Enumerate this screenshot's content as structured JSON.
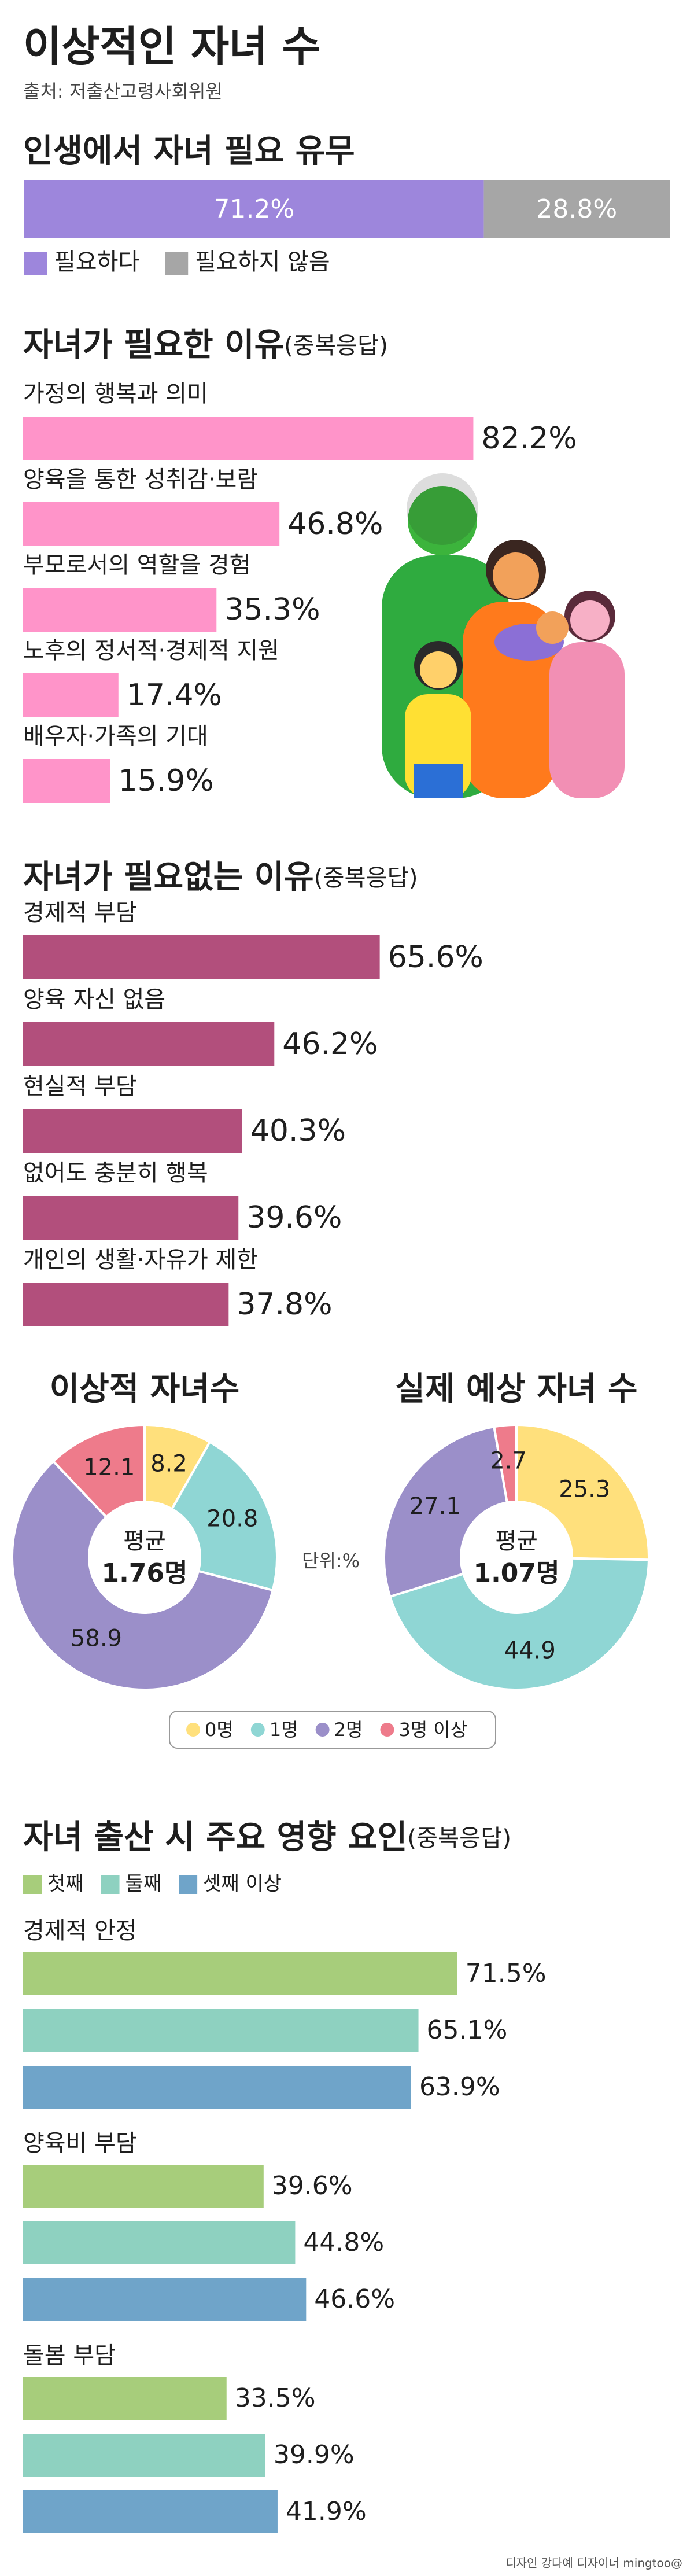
{
  "header": {
    "title": "이상적인 자녀 수",
    "source": "출처: 저출산고령사회위원"
  },
  "chart_data": [
    {
      "type": "stacked_bar",
      "title": "인생에서 자녀 필요 유무",
      "xlim": [
        0,
        100
      ],
      "series": [
        {
          "name": "필요하다",
          "color": "#9d86dc",
          "values": [
            71.2
          ],
          "value_labels": [
            "71.2%"
          ]
        },
        {
          "name": "필요하지 않음",
          "color": "#a6a6a6",
          "values": [
            28.8
          ],
          "value_labels": [
            "28.8%"
          ]
        }
      ]
    },
    {
      "type": "bar",
      "title": "자녀가 필요한 이유",
      "subtitle": "(중복응답)",
      "color": "#ff94c9",
      "xlim": [
        0,
        100
      ],
      "categories": [
        "가정의 행복과 의미",
        "양육을 통한 성취감·보람",
        "부모로서의 역할을 경험",
        "노후의 정서적·경제적 지원",
        "배우자·가족의 기대"
      ],
      "values": [
        82.2,
        46.8,
        35.3,
        17.4,
        15.9
      ],
      "value_labels": [
        "82.2%",
        "46.8%",
        "35.3%",
        "17.4%",
        "15.9%"
      ]
    },
    {
      "type": "bar",
      "title": "자녀가 필요없는 이유",
      "subtitle": "(중복응답)",
      "color": "#b24f7c",
      "xlim": [
        0,
        100
      ],
      "categories": [
        "경제적 부담",
        "양육 자신 없음",
        "현실적 부담",
        "없어도 충분히 행복",
        "개인의 생활·자유가 제한"
      ],
      "values": [
        65.6,
        46.2,
        40.3,
        39.6,
        37.8
      ],
      "value_labels": [
        "65.6%",
        "46.2%",
        "40.3%",
        "39.6%",
        "37.8%"
      ]
    },
    {
      "type": "donut",
      "title": "이상적 자녀수",
      "center_title": "평균",
      "center_value": "1.76명",
      "unit": "단위:%",
      "categories": [
        "0명",
        "1명",
        "2명",
        "3명 이상"
      ],
      "colors": [
        "#ffe07c",
        "#8fd6d4",
        "#9b8fc9",
        "#ee7b8b"
      ],
      "values": [
        8.2,
        20.8,
        58.9,
        12.1
      ]
    },
    {
      "type": "donut",
      "title": "실제 예상 자녀 수",
      "center_title": "평균",
      "center_value": "1.07명",
      "colors": [
        "#ffe07c",
        "#8fd6d4",
        "#9b8fc9",
        "#ee7b8b"
      ],
      "values": [
        25.3,
        44.9,
        27.1,
        2.7
      ]
    },
    {
      "type": "grouped_bar",
      "title": "자녀 출산 시 주요 영향 요인",
      "subtitle": "(중복응답)",
      "xlim": [
        0,
        100
      ],
      "categories": [
        "경제적 안정",
        "양육비 부담",
        "돌봄 부담"
      ],
      "series": [
        {
          "name": "첫째",
          "color": "#a7cd7b",
          "values": [
            71.5,
            39.6,
            33.5
          ],
          "value_labels": [
            "71.5%",
            "39.6%",
            "33.5%"
          ]
        },
        {
          "name": "둘째",
          "color": "#8ed1c0",
          "values": [
            65.1,
            44.8,
            39.9
          ],
          "value_labels": [
            "65.1%",
            "44.8%",
            "39.9%"
          ]
        },
        {
          "name": "셋째 이상",
          "color": "#6fa4c9",
          "values": [
            63.9,
            46.6,
            41.9
          ],
          "value_labels": [
            "63.9%",
            "46.6%",
            "41.9%"
          ]
        }
      ]
    }
  ],
  "footer": {
    "credit": "디자인 강다예 디자이너 mingtoo@"
  }
}
